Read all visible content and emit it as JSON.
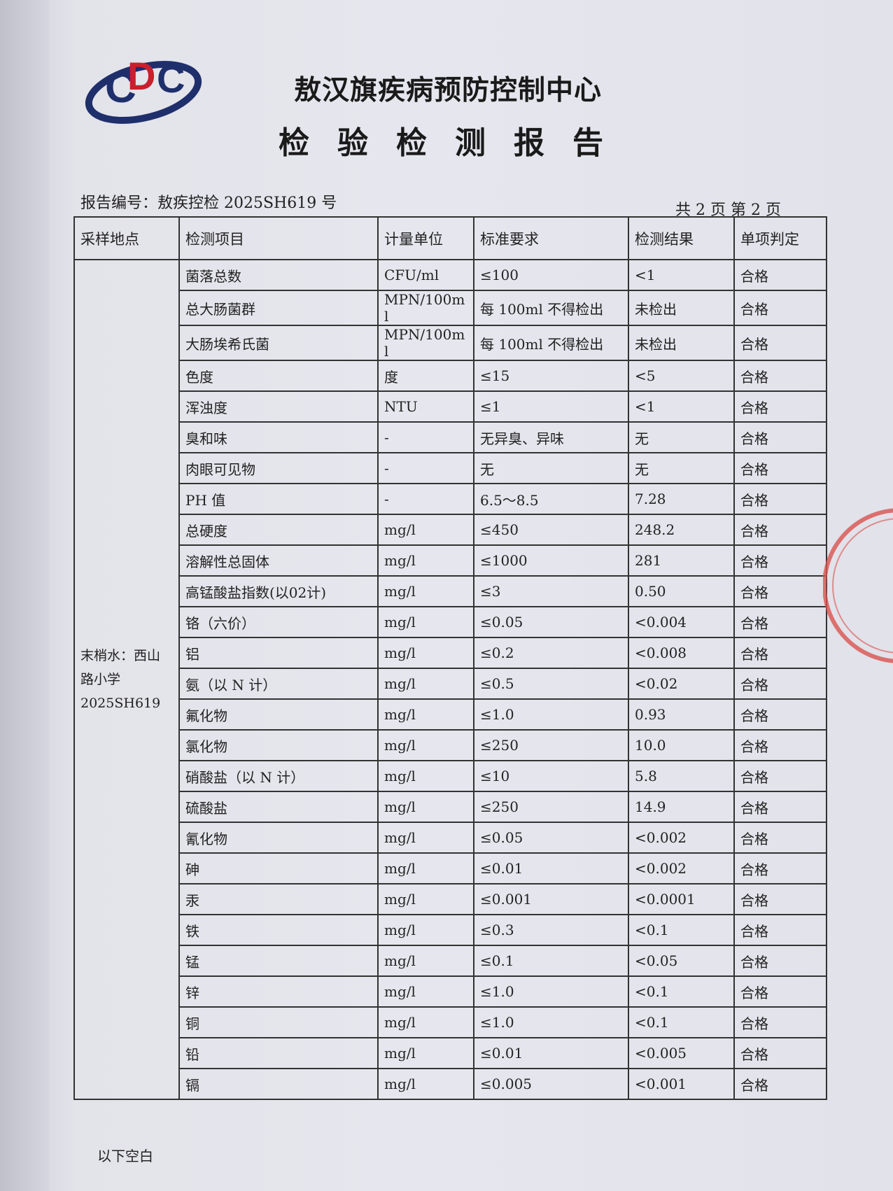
{
  "header": {
    "org": "敖汉旗疾病预防控制中心",
    "title": "检验检测报告",
    "report_no": "报告编号：敖疾控检 2025SH619 号",
    "page": "共 2 页  第 2 页",
    "logo_text": "CDC"
  },
  "table": {
    "columns": [
      "采样地点",
      "检测项目",
      "计量单位",
      "标准要求",
      "检测结果",
      "单项判定"
    ],
    "location": [
      "末梢水：西山",
      "路小学",
      "2025SH619"
    ],
    "rows": [
      [
        "菌落总数",
        "CFU/ml",
        "≤100",
        "<1",
        "合格"
      ],
      [
        "总大肠菌群",
        "MPN/100ml",
        "每 100ml 不得检出",
        "未检出",
        "合格"
      ],
      [
        "大肠埃希氏菌",
        "MPN/100ml",
        "每 100ml 不得检出",
        "未检出",
        "合格"
      ],
      [
        "色度",
        "度",
        "≤15",
        "<5",
        "合格"
      ],
      [
        "浑浊度",
        "NTU",
        "≤1",
        "<1",
        "合格"
      ],
      [
        "臭和味",
        "-",
        "无异臭、异味",
        "无",
        "合格"
      ],
      [
        "肉眼可见物",
        "-",
        "无",
        "无",
        "合格"
      ],
      [
        "PH 值",
        "-",
        "6.5～8.5",
        "7.28",
        "合格"
      ],
      [
        "总硬度",
        "mg/l",
        "≤450",
        "248.2",
        "合格"
      ],
      [
        "溶解性总固体",
        "mg/l",
        "≤1000",
        "281",
        "合格"
      ],
      [
        "高锰酸盐指数(以02计)",
        "mg/l",
        "≤3",
        "0.50",
        "合格"
      ],
      [
        "铬（六价）",
        "mg/l",
        "≤0.05",
        "<0.004",
        "合格"
      ],
      [
        "铝",
        "mg/l",
        "≤0.2",
        "<0.008",
        "合格"
      ],
      [
        "氨（以 N 计）",
        "mg/l",
        "≤0.5",
        "<0.02",
        "合格"
      ],
      [
        "氟化物",
        "mg/l",
        "≤1.0",
        "0.93",
        "合格"
      ],
      [
        "氯化物",
        "mg/l",
        "≤250",
        "10.0",
        "合格"
      ],
      [
        "硝酸盐（以 N 计）",
        "mg/l",
        "≤10",
        "5.8",
        "合格"
      ],
      [
        "硫酸盐",
        "mg/l",
        "≤250",
        "14.9",
        "合格"
      ],
      [
        "氰化物",
        "mg/l",
        "≤0.05",
        "<0.002",
        "合格"
      ],
      [
        "砷",
        "mg/l",
        "≤0.01",
        "<0.002",
        "合格"
      ],
      [
        "汞",
        "mg/l",
        "≤0.001",
        "<0.0001",
        "合格"
      ],
      [
        "铁",
        "mg/l",
        "≤0.3",
        "<0.1",
        "合格"
      ],
      [
        "锰",
        "mg/l",
        "≤0.1",
        "<0.05",
        "合格"
      ],
      [
        "锌",
        "mg/l",
        "≤1.0",
        "<0.1",
        "合格"
      ],
      [
        "铜",
        "mg/l",
        "≤1.0",
        "<0.1",
        "合格"
      ],
      [
        "铅",
        "mg/l",
        "≤0.01",
        "<0.005",
        "合格"
      ],
      [
        "镉",
        "mg/l",
        "≤0.005",
        "<0.001",
        "合格"
      ]
    ]
  },
  "footer": {
    "note": "以下空白"
  },
  "colors": {
    "stamp": "#d9534f",
    "logo_red": "#c8202c",
    "logo_blue": "#1f2f6b"
  }
}
